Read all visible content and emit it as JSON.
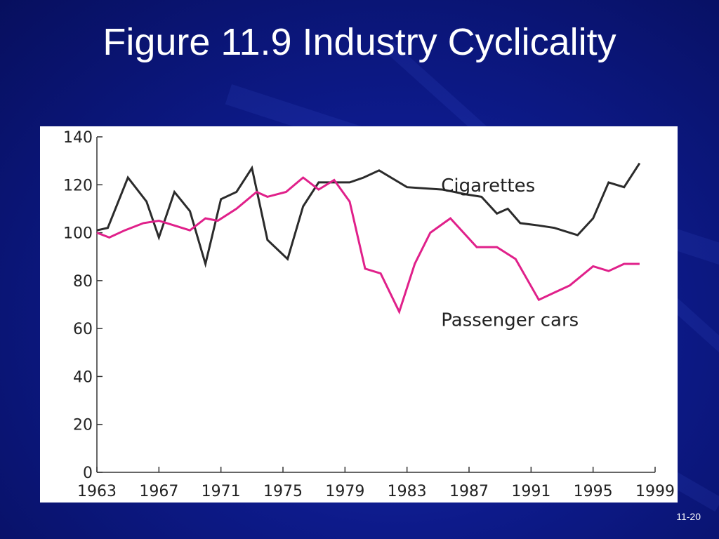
{
  "slide": {
    "title": "Figure 11.9 Industry Cyclicality",
    "number": "11-20",
    "colors": {
      "background": "#0d1a8a",
      "title": "#ffffff"
    }
  },
  "chart_data": {
    "type": "line",
    "title": "",
    "xlabel": "",
    "ylabel": "",
    "xlim": [
      1963,
      1999
    ],
    "ylim": [
      0,
      140
    ],
    "x_ticks": [
      1963,
      1967,
      1971,
      1975,
      1979,
      1983,
      1987,
      1991,
      1995,
      1999
    ],
    "y_ticks": [
      0,
      20,
      40,
      60,
      80,
      100,
      120,
      140
    ],
    "grid": false,
    "legend": "inline labels",
    "series": [
      {
        "name": "Cigarettes",
        "color": "#2b2b2b",
        "points": [
          [
            1963,
            101
          ],
          [
            1963.7,
            102
          ],
          [
            1965,
            123
          ],
          [
            1966.2,
            113
          ],
          [
            1967,
            98
          ],
          [
            1968,
            117
          ],
          [
            1969,
            109
          ],
          [
            1970,
            87
          ],
          [
            1971,
            114
          ],
          [
            1972,
            117
          ],
          [
            1973,
            127
          ],
          [
            1974,
            97
          ],
          [
            1975.3,
            89
          ],
          [
            1976.3,
            111
          ],
          [
            1977.3,
            121
          ],
          [
            1979.3,
            121
          ],
          [
            1980.2,
            123
          ],
          [
            1981.2,
            126
          ],
          [
            1983,
            119
          ],
          [
            1985.3,
            118
          ],
          [
            1986.8,
            116
          ],
          [
            1987.8,
            115
          ],
          [
            1988.8,
            108
          ],
          [
            1989.5,
            110
          ],
          [
            1990.3,
            104
          ],
          [
            1991.5,
            103
          ],
          [
            1992.5,
            102
          ],
          [
            1994,
            99
          ],
          [
            1995,
            106
          ],
          [
            1996,
            121
          ],
          [
            1997,
            119
          ],
          [
            1998,
            129
          ]
        ]
      },
      {
        "name": "Passenger cars",
        "color": "#e0208a",
        "points": [
          [
            1963,
            100
          ],
          [
            1963.8,
            98
          ],
          [
            1964.8,
            101
          ],
          [
            1966,
            104
          ],
          [
            1967,
            105
          ],
          [
            1968,
            103
          ],
          [
            1969,
            101
          ],
          [
            1970,
            106
          ],
          [
            1970.8,
            105
          ],
          [
            1972,
            110
          ],
          [
            1973.3,
            117
          ],
          [
            1974,
            115
          ],
          [
            1975.2,
            117
          ],
          [
            1976.3,
            123
          ],
          [
            1977.3,
            118
          ],
          [
            1978.3,
            122
          ],
          [
            1979.3,
            113
          ],
          [
            1980.3,
            85
          ],
          [
            1981.3,
            83
          ],
          [
            1982.5,
            67
          ],
          [
            1983.5,
            87
          ],
          [
            1984.5,
            100
          ],
          [
            1985.8,
            106
          ],
          [
            1987.5,
            94
          ],
          [
            1988.8,
            94
          ],
          [
            1990,
            89
          ],
          [
            1991.5,
            72
          ],
          [
            1992.5,
            75
          ],
          [
            1993.5,
            78
          ],
          [
            1995,
            86
          ],
          [
            1996,
            84
          ],
          [
            1997,
            87
          ],
          [
            1998,
            87
          ]
        ]
      }
    ]
  }
}
